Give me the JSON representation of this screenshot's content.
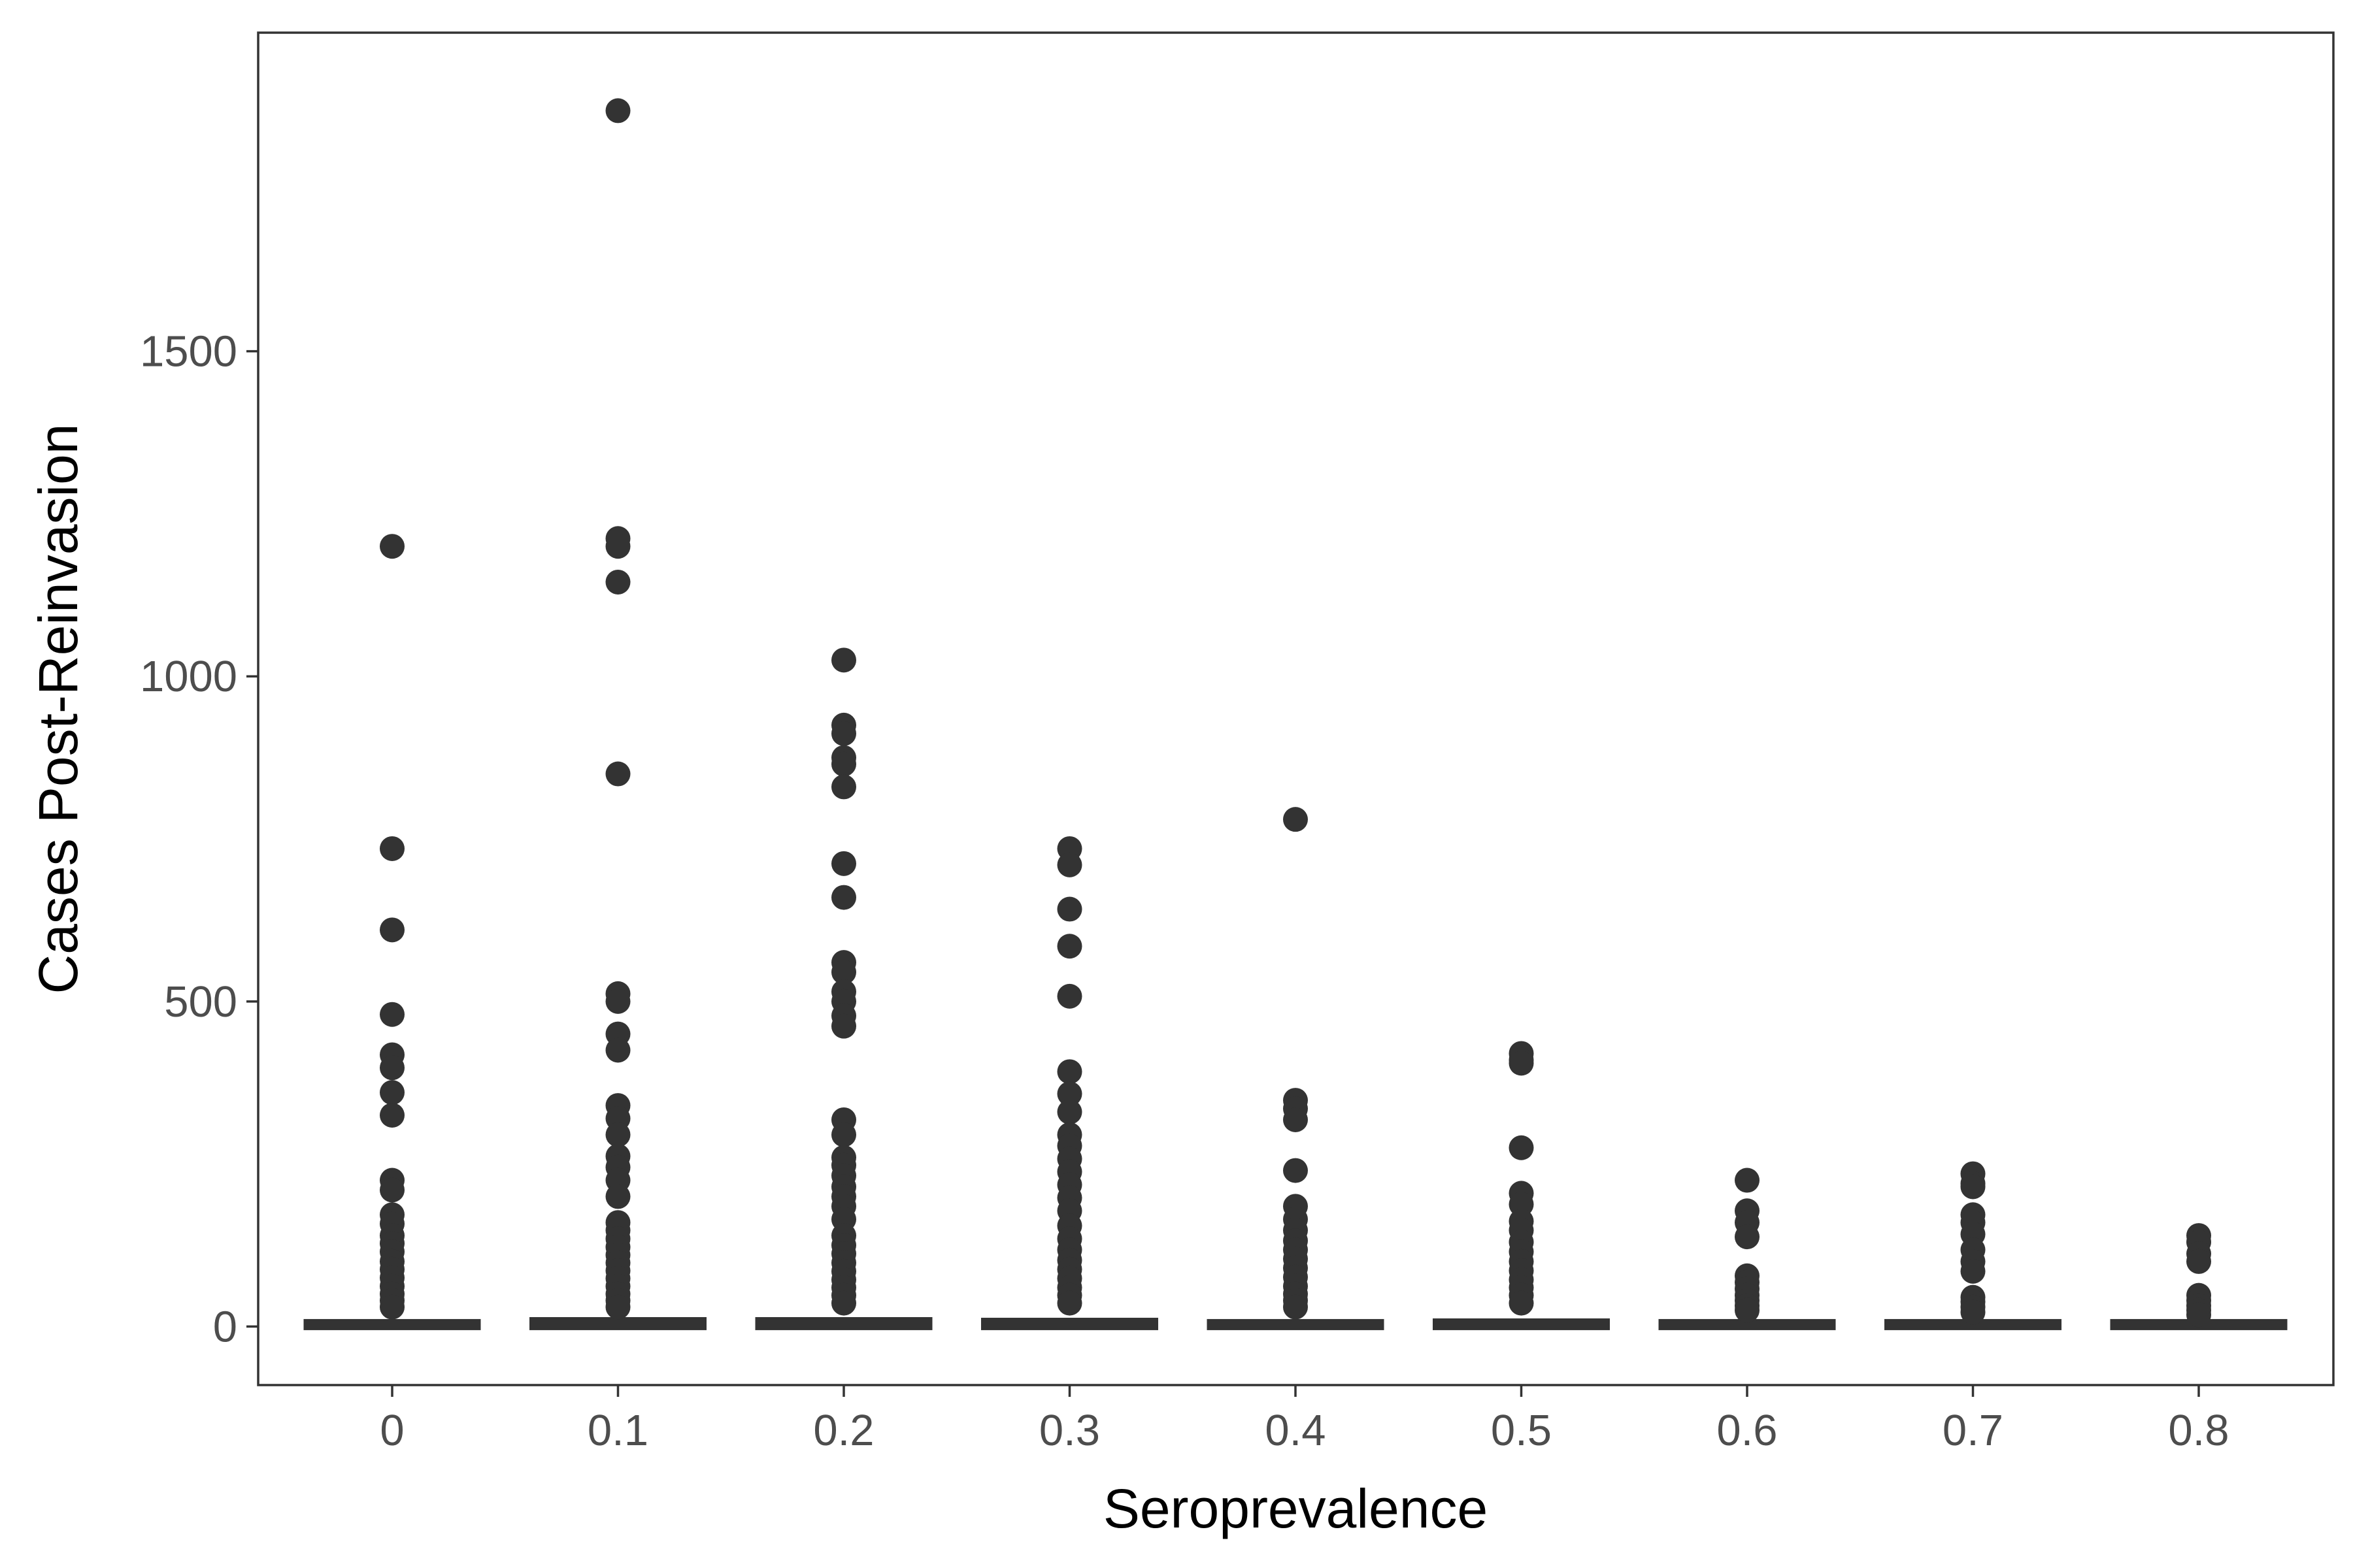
{
  "chart_data": {
    "type": "box",
    "title": "",
    "xlabel": "Seroprevalence",
    "ylabel": "Cases Post-Reinvasion",
    "categories": [
      "0",
      "0.1",
      "0.2",
      "0.3",
      "0.4",
      "0.5",
      "0.6",
      "0.7",
      "0.8"
    ],
    "ylim": [
      -90,
      1990
    ],
    "yticks": [
      0,
      500,
      1000,
      1500
    ],
    "grid": false,
    "legend": "none",
    "colors": {
      "points": "#333333",
      "boxes": "#333333",
      "panel_border": "#333333",
      "tick_text": "#4d4d4d"
    },
    "boxes": [
      {
        "category": "0",
        "q1": 0,
        "median": 2,
        "q3": 6
      },
      {
        "category": "0.1",
        "q1": 0,
        "median": 3,
        "q3": 9
      },
      {
        "category": "0.2",
        "q1": 0,
        "median": 3,
        "q3": 9
      },
      {
        "category": "0.3",
        "q1": 0,
        "median": 3,
        "q3": 8
      },
      {
        "category": "0.4",
        "q1": 0,
        "median": 2,
        "q3": 6
      },
      {
        "category": "0.5",
        "q1": 0,
        "median": 2,
        "q3": 7
      },
      {
        "category": "0.6",
        "q1": 0,
        "median": 1,
        "q3": 4
      },
      {
        "category": "0.7",
        "q1": 0,
        "median": 1,
        "q3": 3
      },
      {
        "category": "0.8",
        "q1": 0,
        "median": 1,
        "q3": 3
      }
    ],
    "outliers": [
      {
        "category": "0",
        "values": [
          1200,
          735,
          610,
          480,
          418,
          398,
          360,
          325,
          225,
          210,
          172,
          158,
          140,
          128,
          115,
          100,
          88,
          75,
          62,
          50,
          40,
          30
        ]
      },
      {
        "category": "0.1",
        "values": [
          1870,
          1212,
          1200,
          1145,
          850,
          512,
          500,
          450,
          425,
          340,
          320,
          295,
          262,
          245,
          225,
          200,
          160,
          148,
          135,
          122,
          110,
          98,
          86,
          74,
          62,
          50,
          40,
          30
        ]
      },
      {
        "category": "0.2",
        "values": [
          1025,
          925,
          912,
          875,
          865,
          830,
          712,
          660,
          560,
          545,
          515,
          500,
          478,
          462,
          318,
          295,
          260,
          248,
          232,
          215,
          200,
          185,
          165,
          140,
          125,
          112,
          98,
          85,
          72,
          60,
          48,
          36
        ]
      },
      {
        "category": "0.3",
        "values": [
          735,
          710,
          642,
          585,
          508,
          392,
          358,
          330,
          295,
          278,
          258,
          238,
          218,
          198,
          178,
          155,
          135,
          118,
          102,
          88,
          74,
          60,
          48,
          36
        ]
      },
      {
        "category": "0.4",
        "values": [
          780,
          348,
          335,
          318,
          240,
          185,
          165,
          148,
          132,
          118,
          104,
          90,
          76,
          62,
          50,
          40,
          30
        ]
      },
      {
        "category": "0.5",
        "values": [
          420,
          410,
          405,
          275,
          205,
          188,
          162,
          148,
          130,
          115,
          100,
          86,
          72,
          60,
          48,
          36
        ]
      },
      {
        "category": "0.6",
        "values": [
          225,
          178,
          160,
          138,
          78,
          68,
          58,
          48,
          40,
          32,
          25
        ]
      },
      {
        "category": "0.7",
        "values": [
          235,
          220,
          215,
          172,
          160,
          142,
          118,
          100,
          85,
          45,
          38,
          30,
          22
        ]
      },
      {
        "category": "0.8",
        "values": [
          140,
          130,
          112,
          100,
          48,
          40,
          32,
          25,
          18
        ]
      }
    ]
  }
}
